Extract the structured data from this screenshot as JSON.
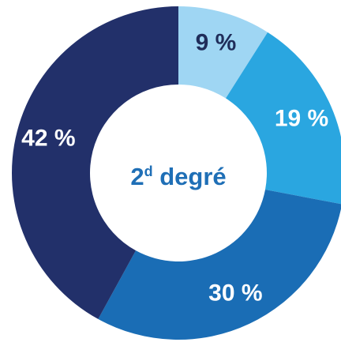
{
  "chart_data": {
    "type": "pie",
    "center_label": {
      "prefix": "2",
      "superscript": "d",
      "suffix": " degré"
    },
    "slices": [
      {
        "value": 9,
        "label": "9 %",
        "color": "#9fd6f3",
        "label_color": "#1f2d5a"
      },
      {
        "value": 19,
        "label": "19 %",
        "color": "#2aa6e0",
        "label_color": "#ffffff"
      },
      {
        "value": 30,
        "label": "30 %",
        "color": "#1a6db5",
        "label_color": "#ffffff"
      },
      {
        "value": 42,
        "label": "42 %",
        "color": "#22306a",
        "label_color": "#ffffff"
      }
    ]
  }
}
